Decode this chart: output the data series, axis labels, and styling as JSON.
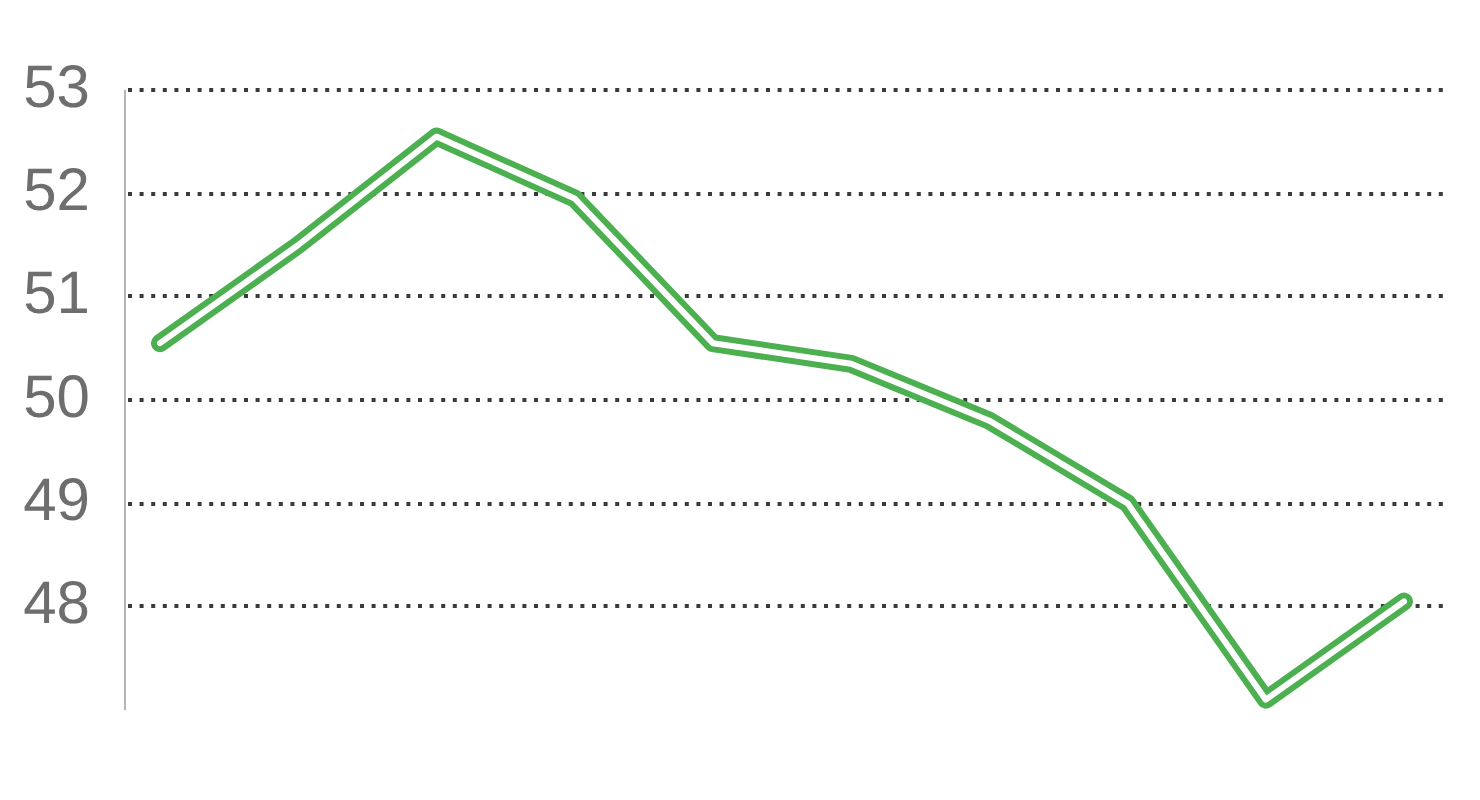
{
  "chart_data": {
    "type": "line",
    "categories": [
      null,
      null,
      null,
      null,
      null,
      null,
      null,
      null,
      null,
      null
    ],
    "values": [
      50.55,
      51.5,
      52.55,
      51.95,
      50.55,
      50.35,
      49.8,
      49.0,
      47.1,
      48.05
    ],
    "color": "#4caf50",
    "ylim": [
      47,
      53
    ],
    "yticks": [
      48,
      49,
      50,
      51,
      52,
      53
    ],
    "grid": "y",
    "tick_labels": "y",
    "marker": "none",
    "line_style": "solid"
  }
}
